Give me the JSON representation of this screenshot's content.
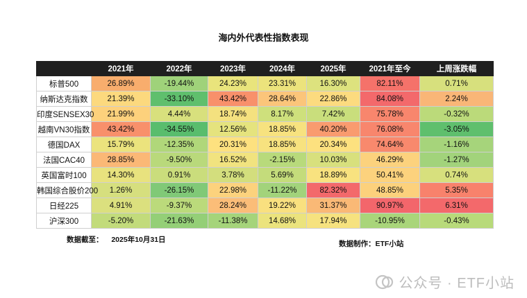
{
  "title": "海内外代表性指数表现",
  "headers": [
    "",
    "2021年",
    "2022年",
    "2023年",
    "2024年",
    "2025年",
    "2021年至今",
    "上周涨跌幅"
  ],
  "rows": [
    {
      "name": "标普500",
      "values": [
        "26.89%",
        "-19.44%",
        "24.23%",
        "23.31%",
        "16.30%",
        "82.11%",
        "0.71%"
      ],
      "colors": [
        "#f8ad6d",
        "#9fd27a",
        "#e9e47c",
        "#ece37c",
        "#dde27e",
        "#f5726a",
        "#d7e07d"
      ]
    },
    {
      "name": "纳斯达克指数",
      "values": [
        "21.39%",
        "-33.10%",
        "43.42%",
        "28.64%",
        "22.86%",
        "84.08%",
        "2.24%"
      ],
      "colors": [
        "#fcd97e",
        "#5fbf6d",
        "#f8906b",
        "#fbc57a",
        "#fcdb7f",
        "#f3696b",
        "#f9b677"
      ]
    },
    {
      "name": "印度SENSEX30",
      "values": [
        "21.99%",
        "4.44%",
        "18.74%",
        "8.17%",
        "7.42%",
        "75.78%",
        "-0.32%"
      ],
      "colors": [
        "#fdd17c",
        "#d8e07d",
        "#f4e17f",
        "#cee07c",
        "#c9de7c",
        "#f8866d",
        "#bbda7a"
      ]
    },
    {
      "name": "越南VN30指数",
      "values": [
        "43.42%",
        "-34.55%",
        "12.56%",
        "18.85%",
        "40.20%",
        "76.08%",
        "-3.05%"
      ],
      "colors": [
        "#f8906b",
        "#59bd6d",
        "#e5e37e",
        "#f7e27f",
        "#f99b6f",
        "#f8866d",
        "#5fbf6d"
      ]
    },
    {
      "name": "德国DAX",
      "values": [
        "15.79%",
        "-12.35%",
        "20.31%",
        "18.85%",
        "20.34%",
        "74.64%",
        "-1.16%"
      ],
      "colors": [
        "#ebe37d",
        "#b0d77a",
        "#fde17f",
        "#f7e27f",
        "#fde17f",
        "#f8896d",
        "#a6d47b"
      ]
    },
    {
      "name": "法国CAC40",
      "values": [
        "28.85%",
        "-9.50%",
        "16.52%",
        "-2.15%",
        "10.03%",
        "46.29%",
        "-1.27%"
      ],
      "colors": [
        "#fbb876",
        "#b9d97b",
        "#f1e37f",
        "#b8da7b",
        "#d8e07d",
        "#fcd27d",
        "#a2d37b"
      ]
    },
    {
      "name": "英国富时100",
      "values": [
        "14.30%",
        "0.91%",
        "3.78%",
        "5.69%",
        "18.89%",
        "50.41%",
        "0.74%"
      ],
      "colors": [
        "#e8e27e",
        "#cadd7c",
        "#d3de7d",
        "#c4dc7b",
        "#f8e27f",
        "#fcd27d",
        "#d7e07d"
      ]
    },
    {
      "name": "韩国综合股价200",
      "values": [
        "1.26%",
        "-26.15%",
        "22.98%",
        "-11.22%",
        "82.32%",
        "48.85%",
        "5.35%"
      ],
      "colors": [
        "#d6df7e",
        "#80c977",
        "#fcd27d",
        "#a2d37b",
        "#f3696b",
        "#fcd17c",
        "#f8826c"
      ]
    },
    {
      "name": "日经225",
      "values": [
        "4.91%",
        "-9.37%",
        "28.24%",
        "19.22%",
        "31.37%",
        "90.97%",
        "6.31%"
      ],
      "colors": [
        "#dbe07e",
        "#bbda7b",
        "#fbbd78",
        "#f9e07f",
        "#fab976",
        "#f3666b",
        "#f3696b"
      ]
    },
    {
      "name": "沪深300",
      "values": [
        "-5.20%",
        "-21.63%",
        "-11.38%",
        "14.68%",
        "17.94%",
        "-10.95%",
        "-0.43%"
      ],
      "colors": [
        "#c2db7b",
        "#94cf77",
        "#a5d47a",
        "#ebe37d",
        "#f6e27f",
        "#a9d57a",
        "#b8da7a"
      ]
    }
  ],
  "footer": {
    "date_label": "数据截至：",
    "date_value": "2025年10月31日",
    "source": "数据制作：ETF小站"
  },
  "watermark": {
    "icon": "wechat-public-icon",
    "text": "公众号 · ETF小站"
  }
}
